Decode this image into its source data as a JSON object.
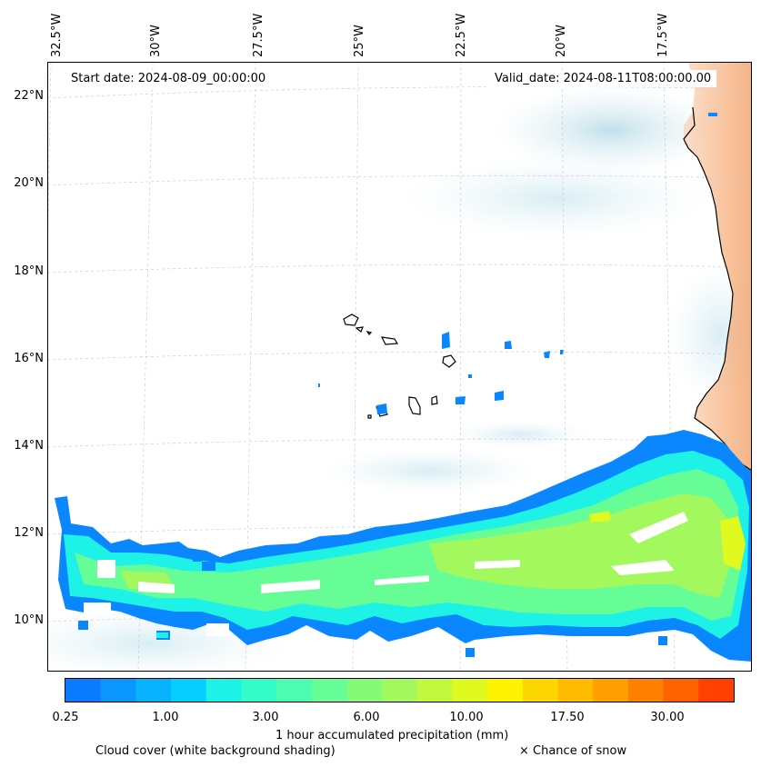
{
  "map": {
    "start_date": "Start date: 2024-08-09_00:00:00",
    "valid_date": "Valid_date: 2024-08-11T08:00:00.00",
    "longitude_labels": [
      "32.5°W",
      "30°W",
      "27.5°W",
      "25°W",
      "22.5°W",
      "20°W",
      "17.5°W"
    ],
    "latitude_labels": [
      "22°N",
      "20°N",
      "18°N",
      "16°N",
      "14°N",
      "12°N",
      "10°N"
    ],
    "colors": {
      "coast": "#000000",
      "cloud": "#cfe6ee",
      "land_heat": "#f4a46a"
    }
  },
  "colorbar": {
    "ticks": [
      "0.25",
      "1.00",
      "3.00",
      "6.00",
      "10.00",
      "17.50",
      "30.00"
    ],
    "label": "1 hour accumulated precipitation (mm)",
    "colors": [
      "#0a7bff",
      "#0a96ff",
      "#08b2ff",
      "#06ceff",
      "#1ef2e6",
      "#34fbc8",
      "#4dfcb0",
      "#66fc96",
      "#84fa78",
      "#a2f85c",
      "#c2f63f",
      "#e0fa20",
      "#fff200",
      "#ffd700",
      "#ffbc00",
      "#ff9f00",
      "#ff8000",
      "#ff6200",
      "#ff4000"
    ]
  },
  "legend": {
    "cloud_cover": "Cloud cover (white background shading)",
    "snow": "× Chance of snow"
  }
}
